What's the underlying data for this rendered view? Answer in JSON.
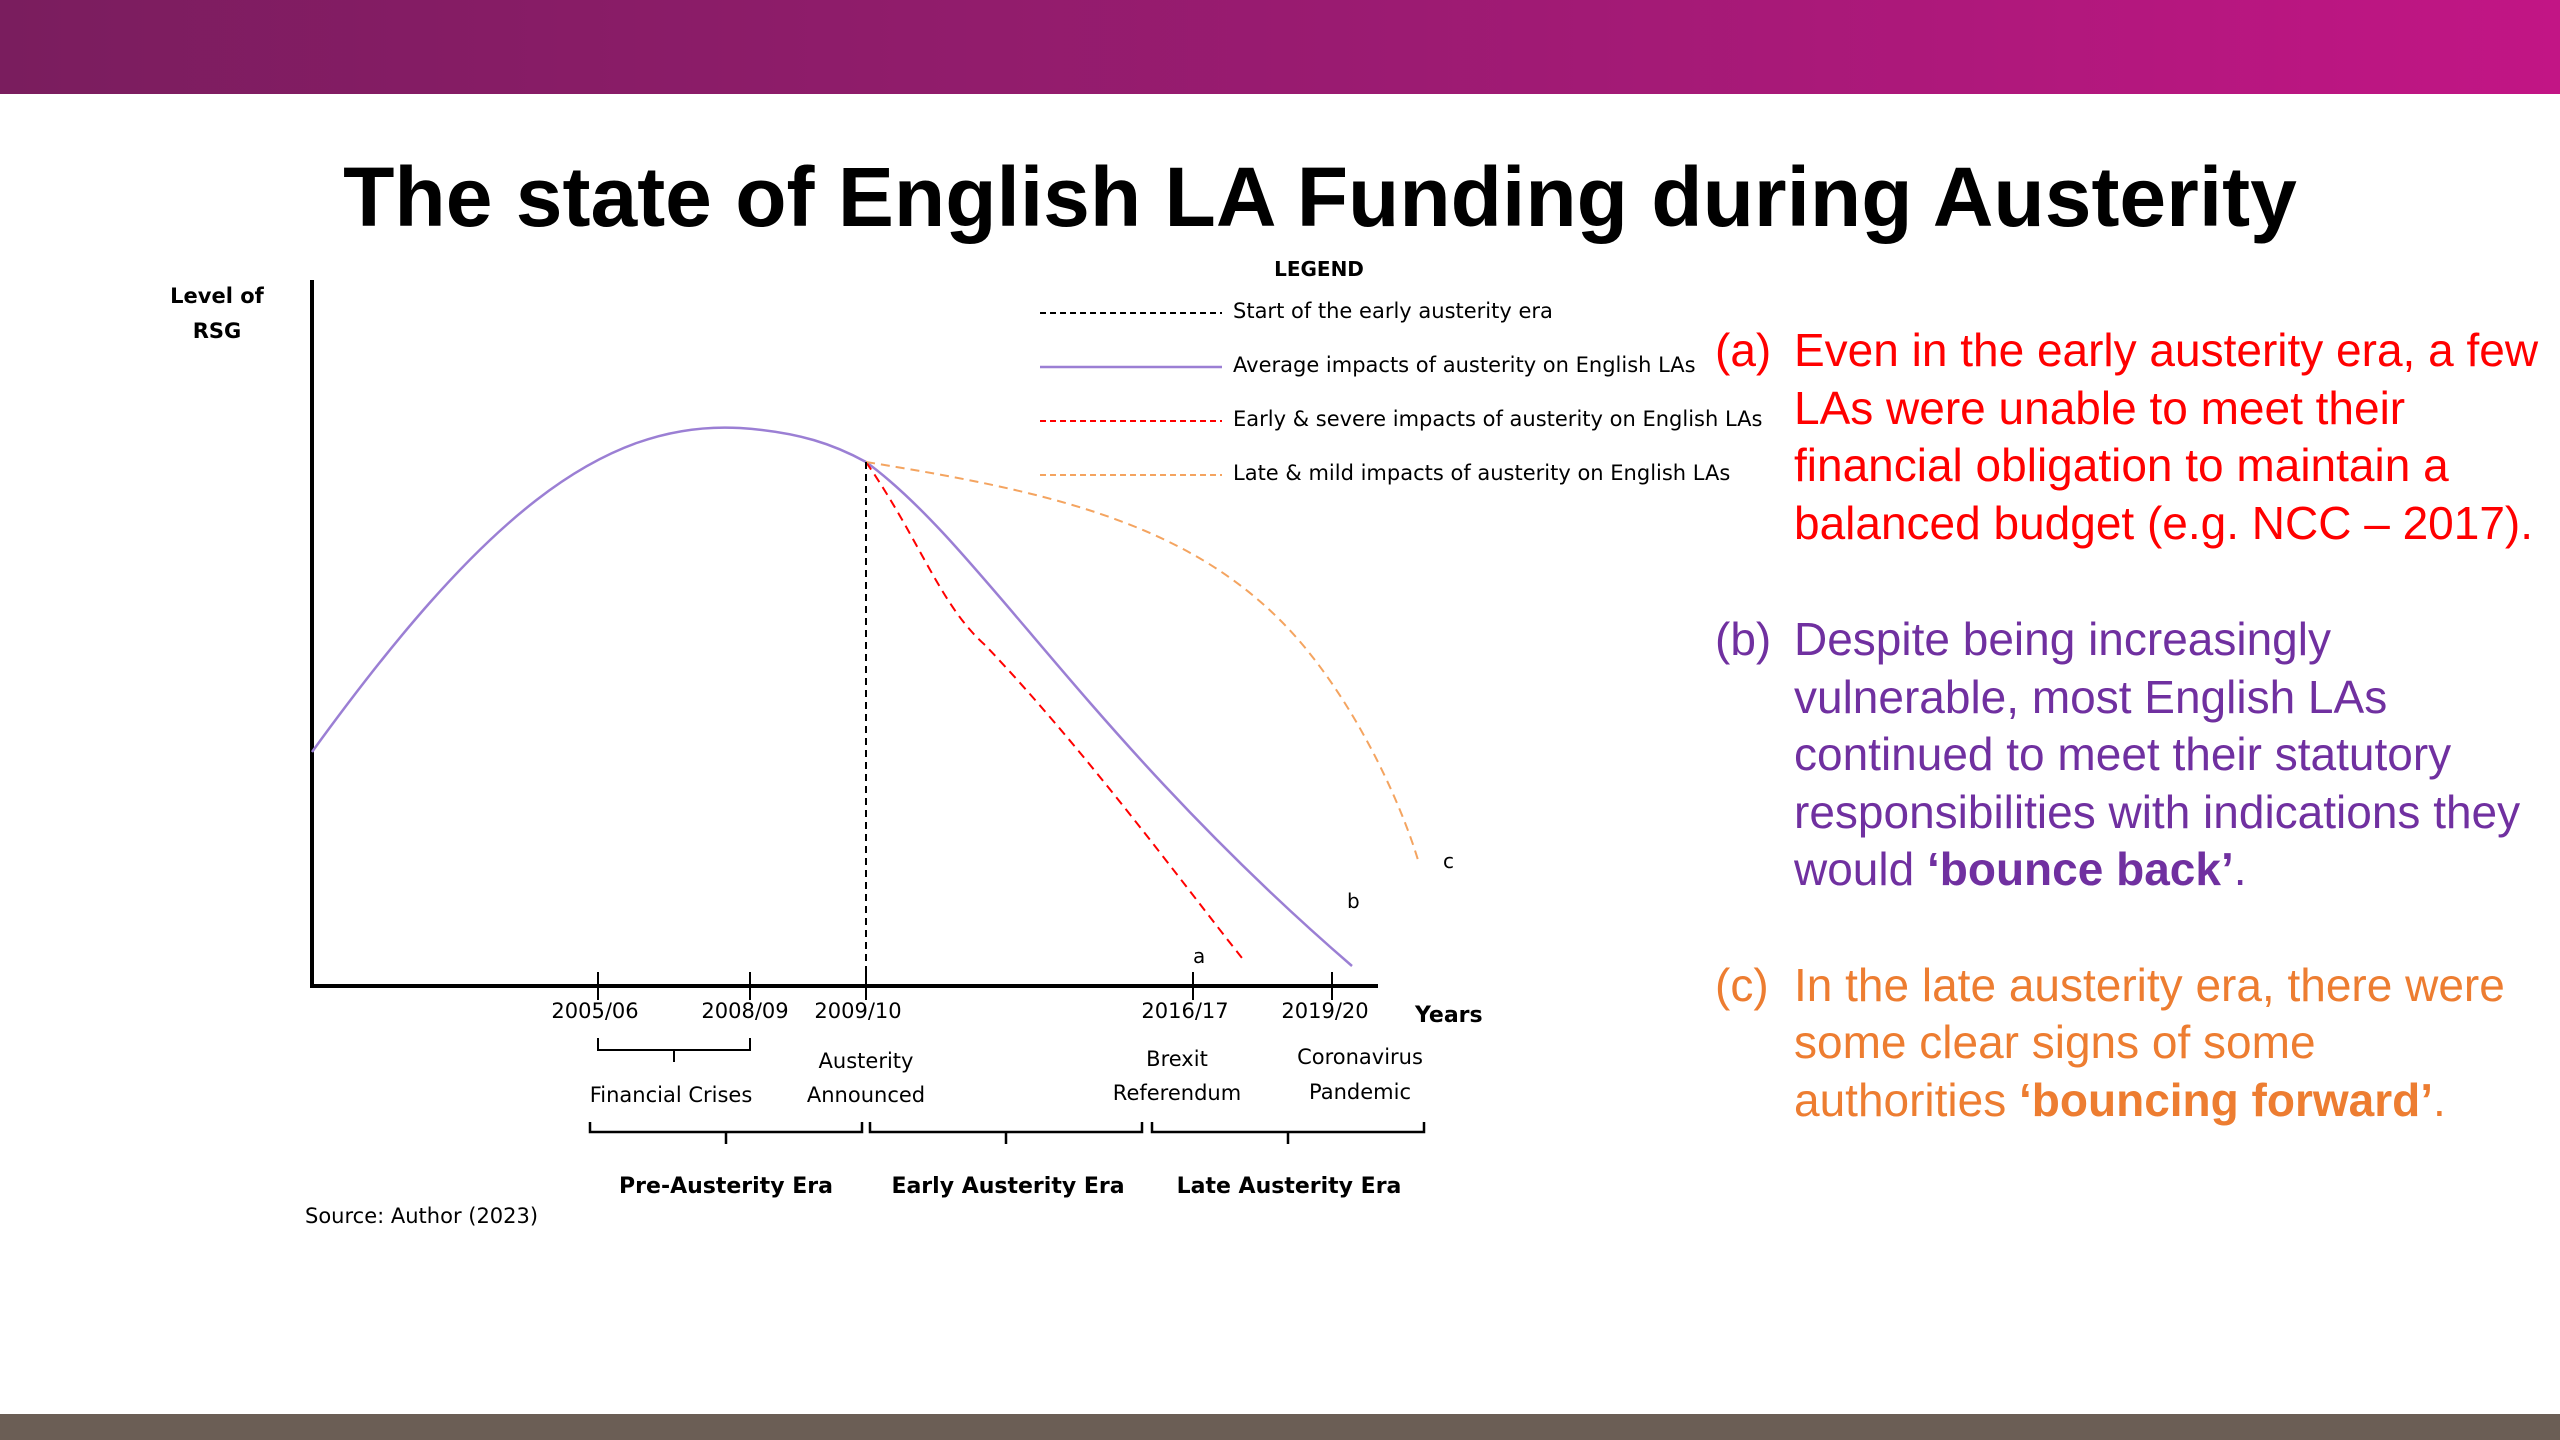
{
  "slide": {
    "title": "The state of English LA Funding during Austerity"
  },
  "colors": {
    "header_gradient_start": "#7a1d5e",
    "header_gradient_end": "#c21585",
    "footer": "#6b5e55",
    "average": "#9b7fd4",
    "early_severe": "#ff0000",
    "late_mild": "#f4a460",
    "note_a": "#ff0000",
    "note_b": "#7030a0",
    "note_c": "#ed7d31"
  },
  "diagram": {
    "y_axis_label_line1": "Level of",
    "y_axis_label_line2": "RSG",
    "x_axis_label": "Years",
    "legend_title": "LEGEND",
    "legend": [
      {
        "label": "Start of the early austerity era",
        "style": "dashed",
        "color": "#000000"
      },
      {
        "label": "Average impacts of austerity on English LAs",
        "style": "solid",
        "color": "#9b7fd4"
      },
      {
        "label": "Early & severe impacts of austerity on English LAs",
        "style": "dashed",
        "color": "#ff0000"
      },
      {
        "label": "Late & mild impacts of austerity on English LAs",
        "style": "dashed",
        "color": "#f4a460"
      }
    ],
    "ticks": [
      "2005/06",
      "2008/09",
      "2009/10",
      "2016/17",
      "2019/20"
    ],
    "events": {
      "financial_crises": "Financial Crises",
      "austerity_line1": "Austerity",
      "austerity_line2": "Announced",
      "brexit_line1": "Brexit",
      "brexit_line2": "Referendum",
      "covid_line1": "Coronavirus",
      "covid_line2": "Pandemic"
    },
    "eras": [
      "Pre-Austerity Era",
      "Early Austerity Era",
      "Late Austerity Era"
    ],
    "curve_labels": {
      "a": "a",
      "b": "b",
      "c": "c"
    },
    "source": "Source: Author (2023)"
  },
  "notes": {
    "a": {
      "letter": "(a)",
      "text": "Even in the early austerity era, a few LAs were unable to meet their financial obligation to maintain a balanced budget (e.g. NCC – 2017)."
    },
    "b": {
      "letter": "(b)",
      "text_before": "Despite being increasingly vulnerable, most English LAs continued to meet their statutory responsibilities with indications they would ",
      "bold": "‘bounce back’",
      "text_after": "."
    },
    "c": {
      "letter": "(c)",
      "text_before": "In the late austerity era, there were some clear signs of some authorities ",
      "bold": "‘bouncing forward’",
      "text_after": "."
    }
  }
}
